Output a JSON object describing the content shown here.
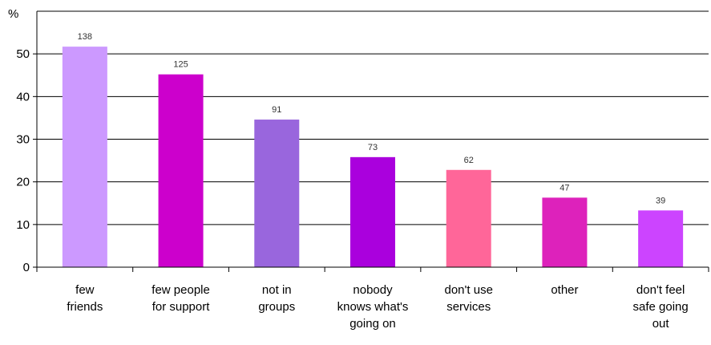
{
  "chart_data": {
    "type": "bar",
    "title": "",
    "xlabel": "",
    "ylabel": "%",
    "ylim": [
      0,
      60
    ],
    "yticks": [
      0,
      10,
      20,
      30,
      40,
      50
    ],
    "grid": true,
    "categories": [
      [
        "few",
        "friends"
      ],
      [
        "few people",
        "for support"
      ],
      [
        "not in",
        "groups"
      ],
      [
        "nobody",
        "knows what's",
        "going on"
      ],
      [
        "don't use",
        "services"
      ],
      [
        "other"
      ],
      [
        "don't feel",
        "safe going",
        "out"
      ]
    ],
    "values": [
      51.7,
      45.2,
      34.6,
      25.8,
      22.8,
      16.3,
      13.3
    ],
    "data_labels": [
      "138",
      "125",
      "91",
      "73",
      "62",
      "47",
      "39"
    ],
    "colors": [
      "#cc99ff",
      "#cc00cc",
      "#9966dd",
      "#aa00dd",
      "#ff6699",
      "#dd22bb",
      "#cc44ff"
    ]
  }
}
